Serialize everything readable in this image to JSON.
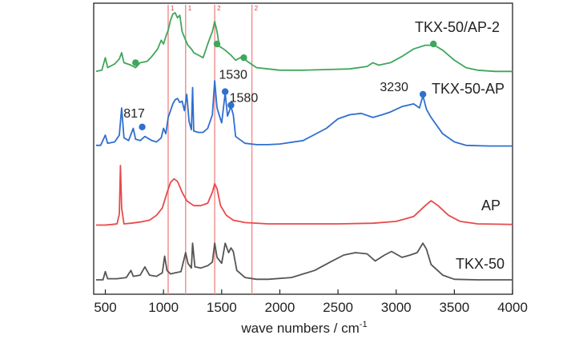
{
  "chart_data": {
    "type": "line",
    "xlabel_main": "wave numbers / cm",
    "xlabel_sup": "-1",
    "ylabel": "",
    "xlim": [
      400,
      4000
    ],
    "x_ticks": [
      500,
      1000,
      1500,
      2000,
      2500,
      3000,
      3500,
      4000
    ],
    "grid": false,
    "legend": "series labels placed at right end of each trace",
    "reference_lines": [
      {
        "x": 1040,
        "label": "1"
      },
      {
        "x": 1190,
        "label": "1"
      },
      {
        "x": 1440,
        "label": "2"
      },
      {
        "x": 1760,
        "label": "2"
      }
    ],
    "series": [
      {
        "name": "TKX-50/AP-2",
        "color": "#3fa65c",
        "points": [
          [
            420,
            0.06
          ],
          [
            470,
            0.08
          ],
          [
            500,
            0.28
          ],
          [
            520,
            0.12
          ],
          [
            580,
            0.18
          ],
          [
            620,
            0.26
          ],
          [
            640,
            0.36
          ],
          [
            660,
            0.2
          ],
          [
            720,
            0.16
          ],
          [
            760,
            0.12
          ],
          [
            800,
            0.2
          ],
          [
            860,
            0.22
          ],
          [
            900,
            0.3
          ],
          [
            950,
            0.42
          ],
          [
            980,
            0.56
          ],
          [
            1000,
            0.5
          ],
          [
            1020,
            0.62
          ],
          [
            1040,
            0.72
          ],
          [
            1060,
            0.88
          ],
          [
            1080,
            0.98
          ],
          [
            1100,
            1.0
          ],
          [
            1120,
            0.92
          ],
          [
            1140,
            0.96
          ],
          [
            1160,
            0.7
          ],
          [
            1190,
            0.56
          ],
          [
            1210,
            0.48
          ],
          [
            1240,
            0.42
          ],
          [
            1260,
            0.36
          ],
          [
            1300,
            0.32
          ],
          [
            1340,
            0.28
          ],
          [
            1380,
            0.5
          ],
          [
            1420,
            0.7
          ],
          [
            1440,
            0.86
          ],
          [
            1460,
            0.7
          ],
          [
            1480,
            0.46
          ],
          [
            1500,
            0.44
          ],
          [
            1530,
            0.4
          ],
          [
            1580,
            0.32
          ],
          [
            1620,
            0.24
          ],
          [
            1680,
            0.3
          ],
          [
            1720,
            0.22
          ],
          [
            1800,
            0.12
          ],
          [
            1900,
            0.1
          ],
          [
            2000,
            0.08
          ],
          [
            2200,
            0.08
          ],
          [
            2400,
            0.09
          ],
          [
            2600,
            0.1
          ],
          [
            2750,
            0.14
          ],
          [
            2800,
            0.2
          ],
          [
            2850,
            0.16
          ],
          [
            2950,
            0.2
          ],
          [
            3050,
            0.3
          ],
          [
            3150,
            0.42
          ],
          [
            3250,
            0.48
          ],
          [
            3330,
            0.48
          ],
          [
            3400,
            0.4
          ],
          [
            3500,
            0.24
          ],
          [
            3600,
            0.12
          ],
          [
            3700,
            0.08
          ],
          [
            3850,
            0.06
          ],
          [
            4000,
            0.06
          ]
        ],
        "markers": [
          [
            760,
            0.2
          ],
          [
            1460,
            0.5
          ],
          [
            1690,
            0.28
          ],
          [
            3320,
            0.5
          ]
        ],
        "label_pos": "top-right"
      },
      {
        "name": "TKX-50-AP",
        "color": "#2f6fd0",
        "points": [
          [
            420,
            0.05
          ],
          [
            460,
            0.05
          ],
          [
            500,
            0.2
          ],
          [
            520,
            0.08
          ],
          [
            580,
            0.1
          ],
          [
            620,
            0.2
          ],
          [
            640,
            0.6
          ],
          [
            660,
            0.16
          ],
          [
            700,
            0.12
          ],
          [
            740,
            0.3
          ],
          [
            760,
            0.14
          ],
          [
            800,
            0.12
          ],
          [
            840,
            0.18
          ],
          [
            900,
            0.12
          ],
          [
            940,
            0.1
          ],
          [
            980,
            0.16
          ],
          [
            1000,
            0.3
          ],
          [
            1020,
            0.22
          ],
          [
            1040,
            0.46
          ],
          [
            1060,
            0.56
          ],
          [
            1080,
            0.66
          ],
          [
            1100,
            0.72
          ],
          [
            1120,
            0.74
          ],
          [
            1140,
            0.68
          ],
          [
            1160,
            0.7
          ],
          [
            1180,
            0.56
          ],
          [
            1200,
            0.8
          ],
          [
            1220,
            0.4
          ],
          [
            1240,
            0.28
          ],
          [
            1250,
            0.9
          ],
          [
            1260,
            0.26
          ],
          [
            1300,
            0.24
          ],
          [
            1340,
            0.24
          ],
          [
            1380,
            0.3
          ],
          [
            1420,
            0.5
          ],
          [
            1440,
            1.0
          ],
          [
            1460,
            0.6
          ],
          [
            1500,
            0.38
          ],
          [
            1530,
            0.82
          ],
          [
            1550,
            0.48
          ],
          [
            1580,
            0.62
          ],
          [
            1600,
            0.5
          ],
          [
            1620,
            0.18
          ],
          [
            1700,
            0.08
          ],
          [
            1800,
            0.06
          ],
          [
            1900,
            0.06
          ],
          [
            2000,
            0.07
          ],
          [
            2200,
            0.12
          ],
          [
            2400,
            0.3
          ],
          [
            2500,
            0.44
          ],
          [
            2600,
            0.5
          ],
          [
            2700,
            0.52
          ],
          [
            2800,
            0.46
          ],
          [
            2880,
            0.5
          ],
          [
            2950,
            0.54
          ],
          [
            3050,
            0.62
          ],
          [
            3150,
            0.66
          ],
          [
            3200,
            0.6
          ],
          [
            3230,
            0.78
          ],
          [
            3260,
            0.58
          ],
          [
            3300,
            0.46
          ],
          [
            3400,
            0.22
          ],
          [
            3500,
            0.1
          ],
          [
            3600,
            0.05
          ],
          [
            3800,
            0.04
          ],
          [
            4000,
            0.04
          ]
        ],
        "markers": [
          [
            817,
            0.32
          ],
          [
            1530,
            0.84
          ],
          [
            1580,
            0.64
          ],
          [
            3230,
            0.8
          ]
        ],
        "annotations": [
          {
            "text": "817",
            "x": 817
          },
          {
            "text": "1530",
            "x": 1530
          },
          {
            "text": "1580",
            "x": 1580
          },
          {
            "text": "3230",
            "x": 3230
          }
        ],
        "label_pos": "top-right"
      },
      {
        "name": "AP",
        "color": "#e84a4a",
        "points": [
          [
            420,
            0.02
          ],
          [
            500,
            0.02
          ],
          [
            560,
            0.03
          ],
          [
            600,
            0.04
          ],
          [
            620,
            0.2
          ],
          [
            630,
            1.0
          ],
          [
            640,
            0.3
          ],
          [
            660,
            0.04
          ],
          [
            720,
            0.05
          ],
          [
            800,
            0.07
          ],
          [
            880,
            0.1
          ],
          [
            940,
            0.18
          ],
          [
            990,
            0.3
          ],
          [
            1030,
            0.55
          ],
          [
            1060,
            0.72
          ],
          [
            1090,
            0.78
          ],
          [
            1120,
            0.74
          ],
          [
            1160,
            0.56
          ],
          [
            1200,
            0.42
          ],
          [
            1260,
            0.34
          ],
          [
            1320,
            0.34
          ],
          [
            1380,
            0.38
          ],
          [
            1420,
            0.56
          ],
          [
            1440,
            0.7
          ],
          [
            1460,
            0.62
          ],
          [
            1490,
            0.34
          ],
          [
            1540,
            0.18
          ],
          [
            1600,
            0.1
          ],
          [
            1700,
            0.06
          ],
          [
            1900,
            0.04
          ],
          [
            2100,
            0.04
          ],
          [
            2500,
            0.04
          ],
          [
            2800,
            0.05
          ],
          [
            3000,
            0.08
          ],
          [
            3150,
            0.16
          ],
          [
            3250,
            0.34
          ],
          [
            3300,
            0.42
          ],
          [
            3360,
            0.34
          ],
          [
            3450,
            0.18
          ],
          [
            3550,
            0.08
          ],
          [
            3700,
            0.04
          ],
          [
            4000,
            0.03
          ]
        ],
        "label_pos": "right"
      },
      {
        "name": "TKX-50",
        "color": "#555555",
        "points": [
          [
            420,
            0.04
          ],
          [
            480,
            0.04
          ],
          [
            500,
            0.18
          ],
          [
            520,
            0.06
          ],
          [
            600,
            0.06
          ],
          [
            680,
            0.08
          ],
          [
            720,
            0.2
          ],
          [
            740,
            0.1
          ],
          [
            800,
            0.12
          ],
          [
            840,
            0.26
          ],
          [
            880,
            0.12
          ],
          [
            940,
            0.1
          ],
          [
            990,
            0.16
          ],
          [
            1010,
            0.44
          ],
          [
            1030,
            0.2
          ],
          [
            1060,
            0.14
          ],
          [
            1100,
            0.16
          ],
          [
            1150,
            0.18
          ],
          [
            1190,
            0.5
          ],
          [
            1210,
            0.32
          ],
          [
            1240,
            0.24
          ],
          [
            1250,
            0.66
          ],
          [
            1270,
            0.26
          ],
          [
            1320,
            0.24
          ],
          [
            1380,
            0.28
          ],
          [
            1420,
            0.34
          ],
          [
            1440,
            0.66
          ],
          [
            1460,
            0.42
          ],
          [
            1500,
            0.32
          ],
          [
            1530,
            0.66
          ],
          [
            1560,
            0.5
          ],
          [
            1580,
            0.58
          ],
          [
            1600,
            0.52
          ],
          [
            1630,
            0.2
          ],
          [
            1700,
            0.08
          ],
          [
            1800,
            0.05
          ],
          [
            1900,
            0.05
          ],
          [
            2100,
            0.08
          ],
          [
            2300,
            0.2
          ],
          [
            2450,
            0.36
          ],
          [
            2550,
            0.46
          ],
          [
            2650,
            0.5
          ],
          [
            2750,
            0.48
          ],
          [
            2820,
            0.36
          ],
          [
            2900,
            0.46
          ],
          [
            2960,
            0.52
          ],
          [
            3050,
            0.42
          ],
          [
            3120,
            0.46
          ],
          [
            3180,
            0.5
          ],
          [
            3230,
            0.66
          ],
          [
            3260,
            0.56
          ],
          [
            3300,
            0.3
          ],
          [
            3400,
            0.12
          ],
          [
            3500,
            0.05
          ],
          [
            3700,
            0.04
          ],
          [
            4000,
            0.04
          ]
        ],
        "label_pos": "right"
      }
    ]
  }
}
